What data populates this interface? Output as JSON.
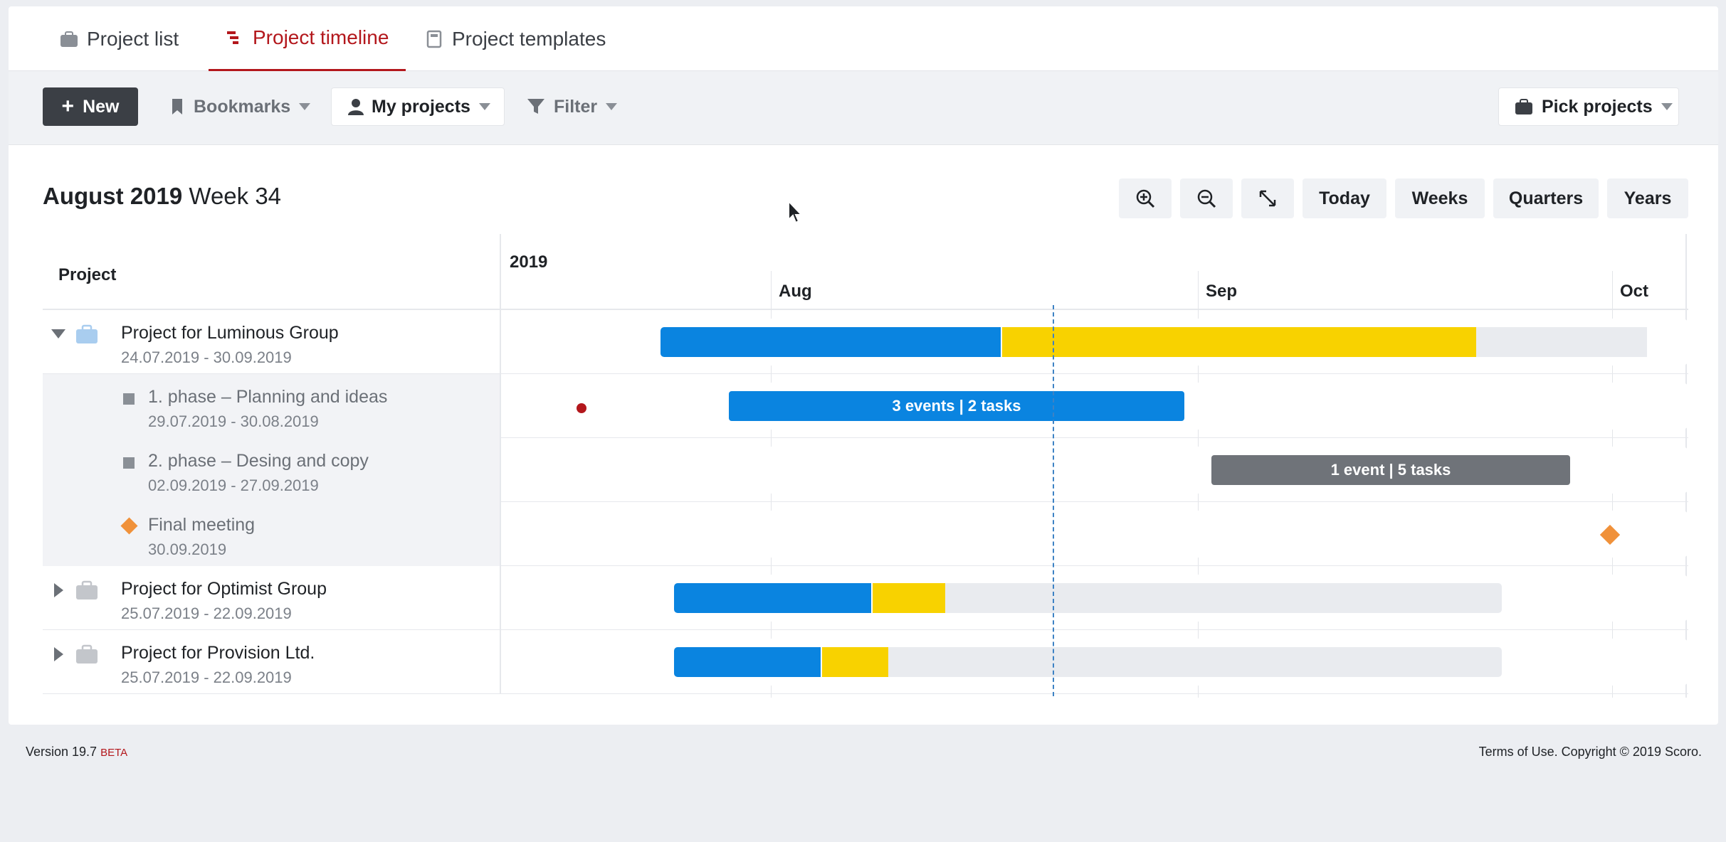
{
  "tabs": [
    {
      "label": "Project list",
      "icon": "briefcase-icon"
    },
    {
      "label": "Project timeline",
      "icon": "timeline-icon"
    },
    {
      "label": "Project templates",
      "icon": "template-icon"
    }
  ],
  "toolbar": {
    "new_label": "New",
    "bookmarks_label": "Bookmarks",
    "my_projects_label": "My projects",
    "filter_label": "Filter",
    "pick_projects_label": "Pick projects"
  },
  "heading": {
    "month": "August 2019",
    "week": "Week 34"
  },
  "zoom_controls": {
    "today": "Today",
    "weeks": "Weeks",
    "quarters": "Quarters",
    "years": "Years"
  },
  "timeline": {
    "column_header": "Project",
    "year": "2019",
    "months": [
      "Aug",
      "Sep",
      "Oct"
    ]
  },
  "rows": [
    {
      "title": "Project for Luminous Group",
      "dates": "24.07.2019 - 30.09.2019"
    },
    {
      "title": "1. phase – Planning and ideas",
      "dates": "29.07.2019 - 30.08.2019",
      "bar_label": "3 events | 2 tasks"
    },
    {
      "title": "2. phase – Desing and copy",
      "dates": "02.09.2019 - 27.09.2019",
      "bar_label": "1 event | 5 tasks"
    },
    {
      "title": "Final meeting",
      "dates": "30.09.2019"
    },
    {
      "title": "Project for Optimist Group",
      "dates": "25.07.2019 - 22.09.2019"
    },
    {
      "title": "Project for Provision Ltd.",
      "dates": "25.07.2019 - 22.09.2019"
    }
  ],
  "footer": {
    "version": "Version 19.7",
    "beta": "BETA",
    "copyright": "Terms of Use. Copyright © 2019 Scoro."
  },
  "colors": {
    "blue": "#0a84e0",
    "yellow": "#f8d200",
    "grey_bar": "#6f7379",
    "accent_red": "#b3171c",
    "milestone_orange": "#f0913a"
  }
}
